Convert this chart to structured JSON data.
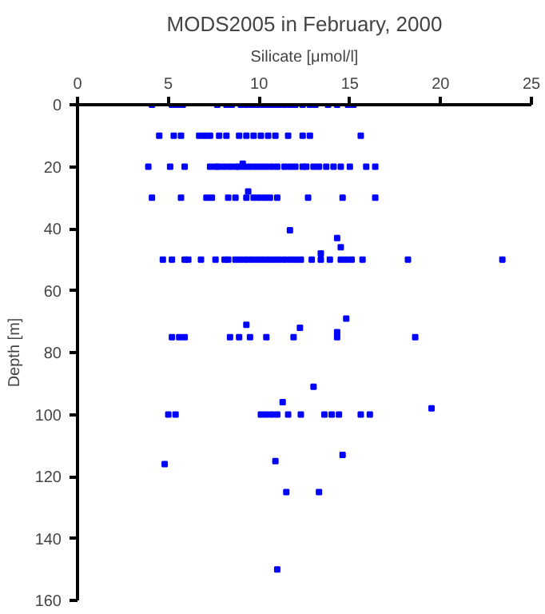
{
  "chart_data": {
    "type": "scatter",
    "title": "MODS2005 in February, 2000",
    "xlabel": "Silicate [μmol/l]",
    "ylabel": "Depth [m]",
    "xlim": [
      0,
      25
    ],
    "xticks": [
      0,
      5,
      10,
      15,
      20,
      25
    ],
    "ylim": [
      160,
      0
    ],
    "yticks": [
      0,
      20,
      40,
      60,
      80,
      100,
      120,
      140,
      160
    ],
    "grid": false,
    "marker": "square",
    "series": [
      {
        "color": "#0000ff",
        "x": [
          4.1,
          5.2,
          5.5,
          5.8,
          7.7,
          8.2,
          8.5,
          9.0,
          9.3,
          9.6,
          9.9,
          10.2,
          10.5,
          10.8,
          11.1,
          11.4,
          11.7,
          12.0,
          12.4,
          12.8,
          13.1,
          13.8,
          14.3,
          14.9,
          15.2
        ],
        "values": [
          0,
          0,
          0,
          0,
          0,
          0,
          0,
          0,
          0,
          0,
          0,
          0,
          0,
          0,
          0,
          0,
          0,
          0,
          0,
          0,
          0,
          0,
          0,
          0,
          0
        ]
      },
      {
        "color": "#0000ff",
        "x": [
          4.5,
          5.3,
          5.7,
          6.7,
          7.0,
          7.3,
          7.8,
          8.2,
          8.9,
          9.3,
          9.7,
          10.1,
          10.5,
          10.9,
          11.6,
          12.4,
          12.8,
          15.6
        ],
        "values": [
          10,
          10,
          10,
          10,
          10,
          10,
          10,
          10,
          10,
          10,
          10,
          10,
          10,
          10,
          10,
          10,
          10,
          10
        ]
      },
      {
        "color": "#0000ff",
        "x": [
          3.9,
          5.1,
          5.9,
          7.3,
          7.6,
          7.8,
          8.1,
          8.4,
          8.7,
          8.9,
          9.2,
          9.5,
          9.8,
          10.1,
          10.4,
          10.7,
          11.0,
          11.4,
          11.7,
          12.0,
          12.4,
          12.6,
          13.0,
          13.3,
          13.7,
          14.1,
          14.5,
          15.0,
          15.9,
          16.4,
          9.1
        ],
        "values": [
          20,
          20,
          20,
          20,
          20,
          20,
          20,
          20,
          20,
          20,
          20,
          20,
          20,
          20,
          20,
          20,
          20,
          20,
          20,
          20,
          20,
          20,
          20,
          20,
          20,
          20,
          20,
          20,
          20,
          20,
          19
        ]
      },
      {
        "color": "#0000ff",
        "x": [
          4.1,
          5.7,
          7.1,
          7.4,
          8.3,
          8.7,
          9.3,
          9.7,
          10.0,
          10.3,
          10.6,
          11.0,
          12.7,
          14.6,
          16.4,
          9.4
        ],
        "values": [
          30,
          30,
          30,
          30,
          30,
          30,
          30,
          30,
          30,
          30,
          30,
          30,
          30,
          30,
          30,
          28
        ]
      },
      {
        "color": "#0000ff",
        "x": [
          11.7,
          14.3,
          14.5,
          13.4
        ],
        "values": [
          40.5,
          43,
          46,
          48
        ]
      },
      {
        "color": "#0000ff",
        "x": [
          4.7,
          5.2,
          5.9,
          6.1,
          6.8,
          7.6,
          8.1,
          8.3,
          8.7,
          9.0,
          9.3,
          9.6,
          9.9,
          10.2,
          10.5,
          10.8,
          11.1,
          11.4,
          11.7,
          12.0,
          12.3,
          12.9,
          13.4,
          13.9,
          14.5,
          14.8,
          15.1,
          15.7,
          18.2,
          23.4
        ],
        "values": [
          50,
          50,
          50,
          50,
          50,
          50,
          50,
          50,
          50,
          50,
          50,
          50,
          50,
          50,
          50,
          50,
          50,
          50,
          50,
          50,
          50,
          50,
          50,
          50,
          50,
          50,
          50,
          50,
          50,
          50
        ]
      },
      {
        "color": "#0000ff",
        "x": [
          14.8,
          9.3,
          12.25,
          14.3
        ],
        "values": [
          69,
          71,
          72,
          73.4
        ]
      },
      {
        "color": "#0000ff",
        "x": [
          5.2,
          5.6,
          5.9,
          8.4,
          8.9,
          9.5,
          10.4,
          11.9,
          14.3,
          18.6
        ],
        "values": [
          75,
          75,
          75,
          75,
          75,
          75,
          75,
          75,
          75,
          75
        ]
      },
      {
        "color": "#0000ff",
        "x": [
          13.0,
          11.3,
          19.5
        ],
        "values": [
          91,
          96,
          98
        ]
      },
      {
        "color": "#0000ff",
        "x": [
          5.0,
          5.4,
          10.1,
          10.4,
          10.7,
          11.0,
          11.6,
          12.3,
          13.6,
          14.0,
          14.4,
          15.6,
          16.1
        ],
        "values": [
          100,
          100,
          100,
          100,
          100,
          100,
          100,
          100,
          100,
          100,
          100,
          100,
          100
        ]
      },
      {
        "color": "#0000ff",
        "x": [
          14.6,
          10.9,
          4.8,
          11.5,
          13.3,
          11.0
        ],
        "values": [
          113,
          115,
          116,
          125,
          125,
          150
        ]
      }
    ]
  }
}
